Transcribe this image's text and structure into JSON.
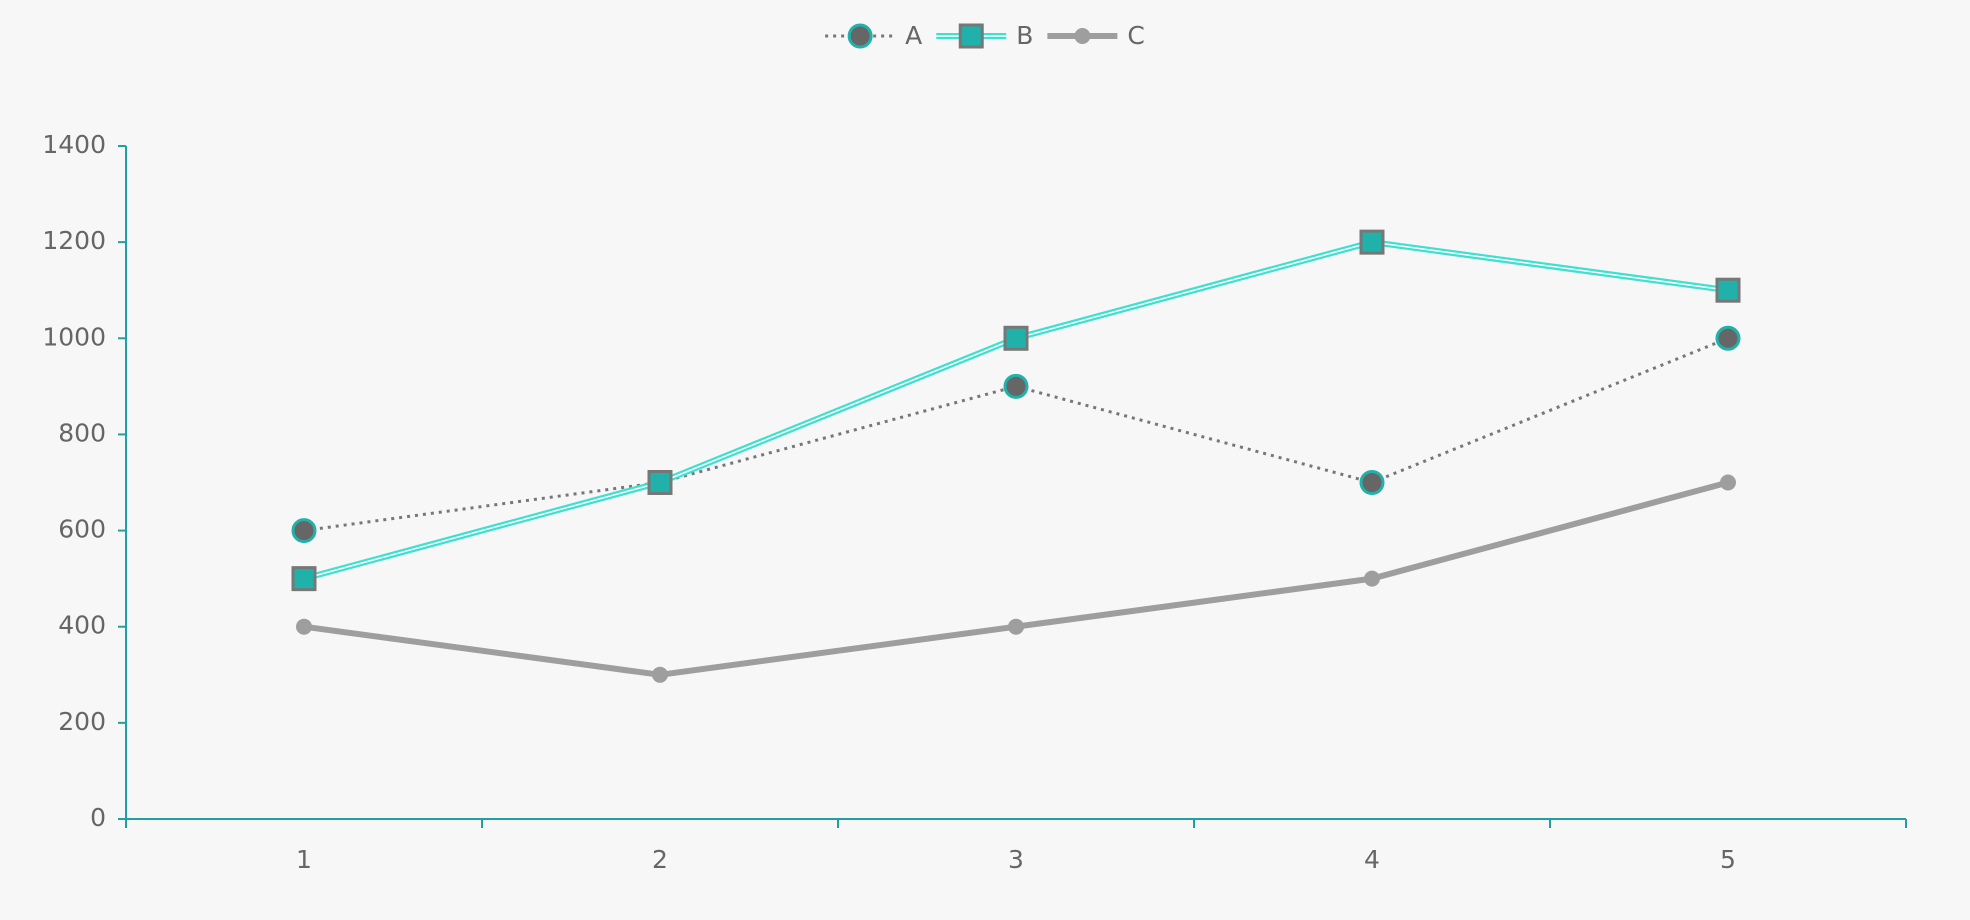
{
  "chart_data": {
    "type": "line",
    "categories": [
      "1",
      "2",
      "3",
      "4",
      "5"
    ],
    "series": [
      {
        "name": "A",
        "color": "#777777",
        "marker_color": "#20b2aa",
        "marker": "circle",
        "line_style": "dotted",
        "values": [
          600,
          700,
          900,
          700,
          1000
        ]
      },
      {
        "name": "B",
        "color": "#40e0d0",
        "marker_color": "#20b2aa",
        "marker": "square",
        "line_style": "double",
        "values": [
          500,
          700,
          1000,
          1200,
          1100
        ]
      },
      {
        "name": "C",
        "color": "#9e9e9e",
        "marker_color": "#9e9e9e",
        "marker": "dot",
        "line_style": "thick",
        "values": [
          400,
          300,
          400,
          500,
          700
        ]
      }
    ],
    "ylim": [
      0,
      1400
    ],
    "yticks": [
      0,
      200,
      400,
      600,
      800,
      1000,
      1200,
      1400
    ],
    "axis_color": "#20a0a0",
    "legend": "top"
  }
}
